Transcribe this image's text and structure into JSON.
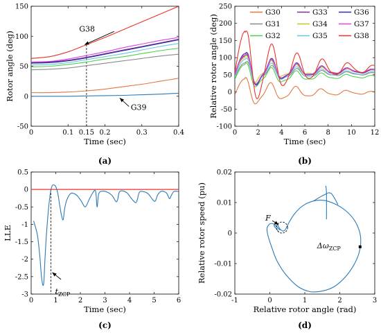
{
  "panels": [
    {
      "id": "a",
      "label": "(a)",
      "type": "line",
      "xlabel": "Time (sec)",
      "ylabel": "Rotor angle (deg)",
      "xlim": [
        0,
        0.4
      ],
      "ylim": [
        -50,
        150
      ],
      "xticks": [
        0,
        0.1,
        0.15,
        0.2,
        0.3,
        0.4
      ],
      "xtick_labels": [
        "0",
        "0.1",
        "0.15",
        "0.2",
        "0.3",
        "0.4"
      ],
      "yticks": [
        -50,
        0,
        50,
        100,
        150
      ],
      "vline_x": 0.15,
      "x": [
        0,
        0.05,
        0.1,
        0.15,
        0.2,
        0.25,
        0.3,
        0.35,
        0.4
      ],
      "series": [
        {
          "name": "G38",
          "color": "#e8342a",
          "values": [
            63,
            66,
            74,
            86,
            98,
            111,
            124,
            137,
            150
          ]
        },
        {
          "name": "G37",
          "color": "#e040e0",
          "values": [
            57,
            58,
            62,
            68,
            74,
            81,
            87,
            93,
            98
          ]
        },
        {
          "name": "G33",
          "color": "#7b2f8e",
          "values": [
            56,
            57,
            60,
            65,
            71,
            77,
            83,
            89,
            95
          ]
        },
        {
          "name": "G36",
          "color": "#2b2fa0",
          "values": [
            55,
            56,
            59,
            64,
            70,
            76,
            82,
            88,
            94
          ]
        },
        {
          "name": "G35",
          "color": "#68c4e8",
          "values": [
            52,
            53,
            56,
            61,
            66,
            71,
            77,
            83,
            88
          ]
        },
        {
          "name": "G32",
          "color": "#4ed04e",
          "values": [
            49,
            50,
            53,
            57,
            62,
            66,
            71,
            76,
            80
          ]
        },
        {
          "name": "G31",
          "color": "#8a8a8a",
          "values": [
            44,
            45,
            47,
            51,
            55,
            59,
            63,
            67,
            70
          ]
        },
        {
          "name": "G30",
          "color": "#e07840",
          "values": [
            6,
            6,
            7,
            9,
            12,
            16,
            20,
            25,
            30
          ]
        },
        {
          "name": "G39",
          "color": "#2a7ab8",
          "values": [
            0,
            0,
            0,
            0.5,
            1,
            1.5,
            2.5,
            3.5,
            5
          ]
        }
      ],
      "annotations": [
        {
          "text": "G38",
          "x": 0.13,
          "y": 108,
          "ax": 0.225,
          "ay": 108,
          "tx": 0.145,
          "ty": 86
        },
        {
          "text": "G39",
          "x": 0.27,
          "y": -23,
          "ax": 0.265,
          "ay": -17,
          "tx": 0.24,
          "ty": -3
        }
      ]
    },
    {
      "id": "b",
      "label": "(b)",
      "type": "line",
      "xlabel": "Time (sec)",
      "ylabel": "Relative rotor angle (deg)",
      "xlim": [
        0,
        12
      ],
      "ylim": [
        -100,
        250
      ],
      "xticks": [
        0,
        2,
        4,
        6,
        8,
        10,
        12
      ],
      "yticks": [
        -100,
        -50,
        0,
        50,
        100,
        150,
        200,
        250
      ],
      "legend": {
        "columns": 3,
        "order": [
          "G30",
          "G33",
          "G36",
          "G31",
          "G34",
          "G37",
          "G32",
          "G35",
          "G38"
        ]
      },
      "series": [
        {
          "name": "G30",
          "color": "#e07840",
          "base": -2,
          "amp": 35,
          "phase": 0.2,
          "peak": 38
        },
        {
          "name": "G31",
          "color": "#8a8a8a",
          "base": 53,
          "amp": 40,
          "phase": 0.0,
          "peak": 85
        },
        {
          "name": "G32",
          "color": "#4ed04e",
          "base": 45,
          "amp": 40,
          "phase": 0.1,
          "peak": 80
        },
        {
          "name": "G33",
          "color": "#7b2f8e",
          "base": 60,
          "amp": 45,
          "phase": 0.0,
          "peak": 105
        },
        {
          "name": "G34",
          "color": "#c8c820",
          "base": 62,
          "amp": 50,
          "phase": 0.15,
          "peak": 100
        },
        {
          "name": "G35",
          "color": "#68c4e8",
          "base": 55,
          "amp": 42,
          "phase": 0.05,
          "peak": 95
        },
        {
          "name": "G36",
          "color": "#2b2fa0",
          "base": 62,
          "amp": 48,
          "phase": 0.0,
          "peak": 112
        },
        {
          "name": "G37",
          "color": "#e040e0",
          "base": 62,
          "amp": 46,
          "phase": 0.02,
          "peak": 108
        },
        {
          "name": "G38",
          "color": "#e8342a",
          "base": 68,
          "amp": 55,
          "phase": -0.08,
          "peak": 178
        }
      ]
    },
    {
      "id": "c",
      "label": "(c)",
      "type": "line",
      "xlabel": "Time (sec)",
      "ylabel": "LLE",
      "xlim": [
        0,
        6
      ],
      "ylim": [
        -3,
        0.5
      ],
      "xticks": [
        0,
        1,
        2,
        3,
        4,
        5,
        6
      ],
      "yticks": [
        -3,
        -2.5,
        -2,
        -1.5,
        -1,
        -0.5,
        0,
        0.5
      ],
      "vline_x": 0.8,
      "zero_line_color": "#e8342a",
      "series": [
        {
          "name": "LLE",
          "color": "#2a7ab8",
          "x": [
            0.1,
            0.25,
            0.35,
            0.42,
            0.48,
            0.52,
            0.56,
            0.62,
            0.7,
            0.78,
            0.85,
            0.92,
            1.0,
            1.08,
            1.15,
            1.22,
            1.3,
            1.36,
            1.45,
            1.6,
            1.75,
            1.9,
            2.05,
            2.2,
            2.35,
            2.5,
            2.62,
            2.68,
            2.75,
            2.9,
            3.1,
            3.3,
            3.45,
            3.52,
            3.58,
            3.7,
            3.9,
            4.1,
            4.25,
            4.32,
            4.4,
            4.55,
            4.75,
            4.95,
            5.05,
            5.15,
            5.3,
            5.5,
            5.62,
            5.68,
            5.8,
            6.0
          ],
          "values": [
            -0.9,
            -1.3,
            -1.9,
            -2.5,
            -2.75,
            -2.6,
            -2.0,
            -1.3,
            -0.6,
            -0.1,
            0.1,
            0.13,
            0.08,
            -0.1,
            -0.4,
            -0.7,
            -0.87,
            -0.55,
            -0.3,
            -0.12,
            -0.12,
            -0.2,
            -0.35,
            -0.5,
            -0.3,
            -0.1,
            -0.05,
            -0.5,
            -0.12,
            -0.05,
            -0.08,
            -0.18,
            -0.35,
            -0.28,
            -0.08,
            -0.04,
            -0.1,
            -0.28,
            -0.38,
            -0.28,
            -0.08,
            -0.06,
            -0.12,
            -0.3,
            -0.33,
            -0.15,
            -0.05,
            -0.1,
            -0.26,
            -0.2,
            -0.06,
            -0.06
          ]
        }
      ],
      "annotation": {
        "text": "t",
        "sub": "ZCP",
        "x": 0.75,
        "y": -2.72,
        "ax": 0.82,
        "ay": -2.5
      }
    },
    {
      "id": "d",
      "label": "(d)",
      "type": "line",
      "xlabel": "Relative rotor angle (rad)",
      "ylabel": "Relative rotor speed (pu)",
      "xlim": [
        -1,
        3
      ],
      "ylim": [
        -0.02,
        0.02
      ],
      "xticks": [
        -1,
        0,
        1,
        2,
        3
      ],
      "yticks": [
        -0.02,
        -0.01,
        0,
        0.01,
        0.02
      ],
      "series": [
        {
          "name": "trajectory",
          "color": "#2a7ab8",
          "x": [
            0.25,
            0.18,
            0.12,
            0.2,
            0.3,
            0.42,
            0.55,
            0.72,
            0.95,
            1.25,
            1.55,
            1.85,
            2.15,
            2.4,
            2.55,
            2.6,
            2.55,
            2.4,
            2.15,
            1.85,
            1.5,
            1.15,
            0.8,
            0.45,
            0.2,
            0.05,
            -0.05,
            -0.08,
            0.0,
            0.1,
            0.2,
            0.27,
            0.32
          ],
          "values": [
            0.0005,
            0.0015,
            0.0025,
            0.003,
            0.0012,
            0.0008,
            0.0035,
            0.0065,
            0.009,
            0.0105,
            0.0107,
            0.0096,
            0.0075,
            0.0045,
            0.001,
            -0.0025,
            -0.0065,
            -0.0105,
            -0.0145,
            -0.0175,
            -0.019,
            -0.0192,
            -0.0175,
            -0.0135,
            -0.009,
            -0.0045,
            -0.001,
            0.0015,
            0.003,
            0.003,
            0.002,
            0.0012,
            0.001
          ]
        },
        {
          "name": "branch",
          "color": "#2a7ab8",
          "x": [
            1.25,
            1.55,
            1.75,
            1.95
          ],
          "values": [
            0.0105,
            0.0125,
            0.013,
            0.0093
          ]
        },
        {
          "name": "spike",
          "color": "#2a7ab8",
          "x": [
            1.62,
            1.62,
            1.6
          ],
          "values": [
            0.0045,
            0.013,
            0.0155
          ]
        }
      ],
      "point_F": {
        "label": "F",
        "x": 0.35,
        "y": 0.0018
      },
      "point_zcp": {
        "label": "Δω",
        "sub": "ZCP",
        "x": 2.58,
        "y": -0.0045
      }
    }
  ]
}
